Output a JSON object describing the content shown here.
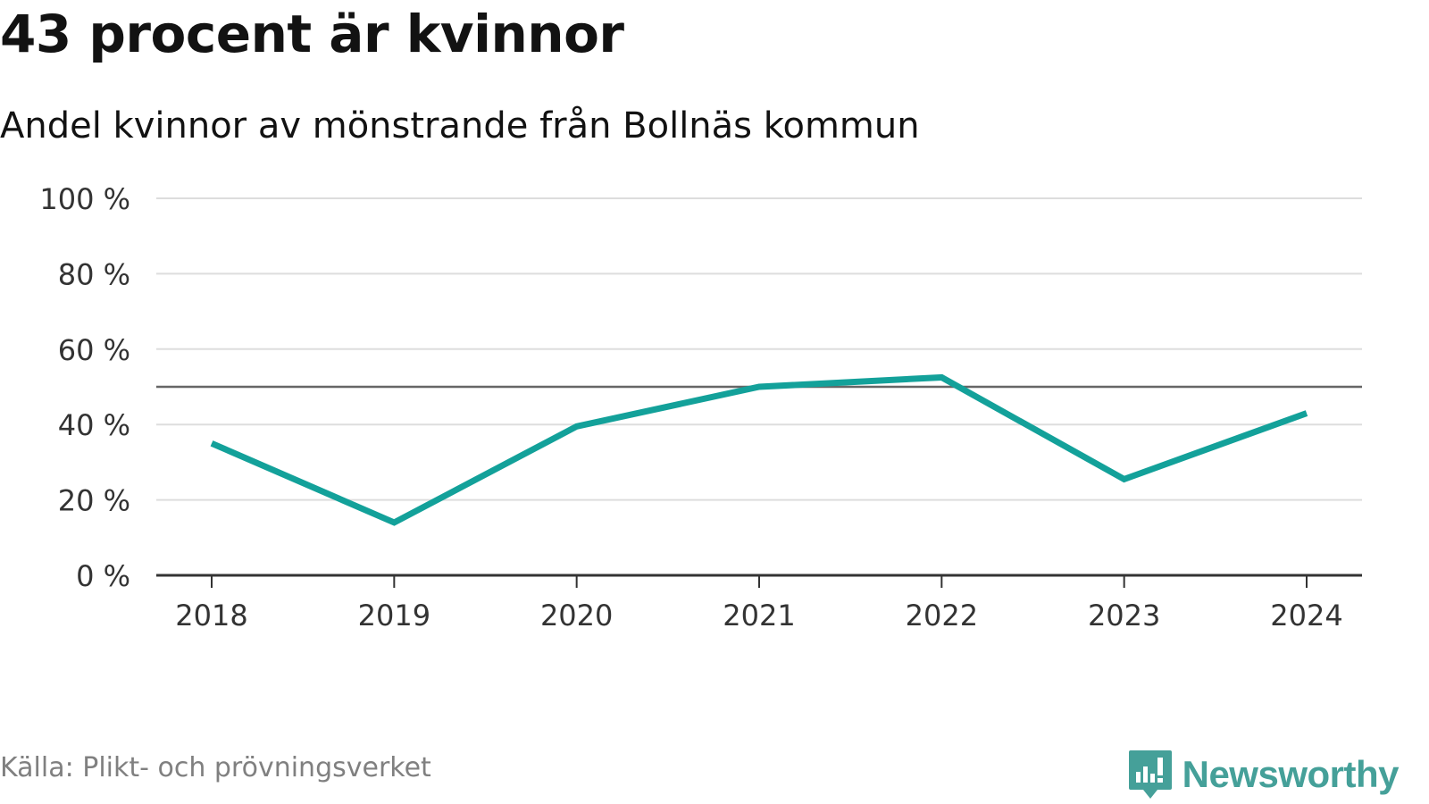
{
  "title": "43 procent är kvinnor",
  "subtitle": "Andel kvinnor av mönstrande från Bollnäs kommun",
  "source": "Källa: Plikt- och prövningsverket",
  "brand": "Newsworthy",
  "colors": {
    "line": "#13a19a",
    "grid": "#dddddd",
    "reference": "#666666",
    "axis": "#333333",
    "brand": "#45a099"
  },
  "chart_data": {
    "type": "line",
    "x": [
      "2018",
      "2019",
      "2020",
      "2021",
      "2022",
      "2023",
      "2024"
    ],
    "series": [
      {
        "values": [
          35,
          14,
          39.5,
          50,
          52.5,
          25.5,
          43
        ]
      }
    ],
    "ylim": [
      0,
      100
    ],
    "yticks": [
      0,
      20,
      40,
      60,
      80,
      100
    ],
    "ytick_labels": [
      "0 %",
      "20 %",
      "40 %",
      "60 %",
      "80 %",
      "100 %"
    ],
    "reference_line": 50,
    "grid": true,
    "xlabel": "",
    "ylabel": ""
  }
}
